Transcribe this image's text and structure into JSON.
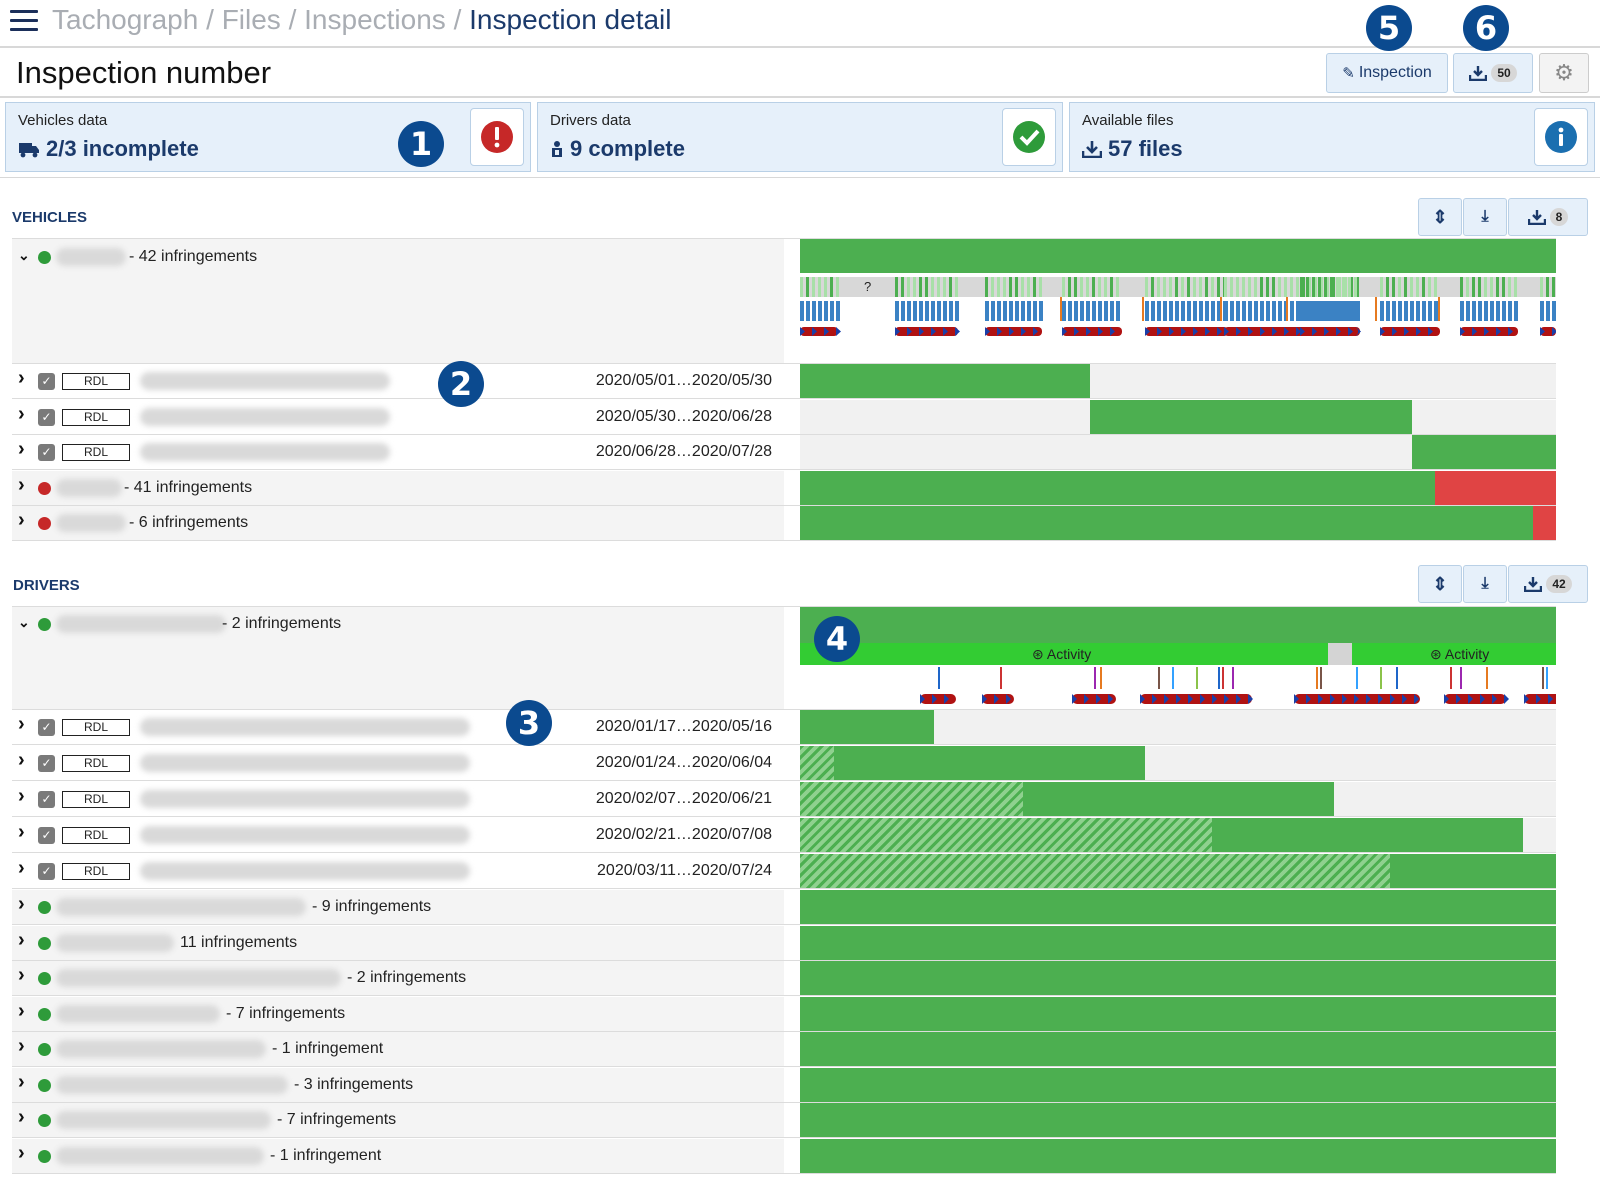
{
  "breadcrumb": {
    "items": [
      "Tachograph",
      "Files",
      "Inspections"
    ],
    "separator": "/",
    "current": "Inspection detail"
  },
  "page_title": "Inspection number",
  "toolbar": {
    "inspection_label": "Inspection",
    "download_count": "50"
  },
  "callouts": [
    "1",
    "2",
    "3",
    "4",
    "5",
    "6"
  ],
  "cards": {
    "vehicles": {
      "label": "Vehicles data",
      "value": "2/3 incomplete",
      "icon": "truck-icon",
      "status_icon": "error-icon"
    },
    "drivers": {
      "label": "Drivers data",
      "value": "9 complete",
      "icon": "driver-icon",
      "status_icon": "check-icon"
    },
    "files": {
      "label": "Available files",
      "value": "57 files",
      "icon": "download-icon",
      "status_icon": "info-icon"
    }
  },
  "vehicles": {
    "title": "VEHICLES",
    "download_count": "8",
    "rows": [
      {
        "infringements": "- 42 infringements",
        "status": "ok",
        "expanded": true,
        "timeline_mark": "?"
      },
      {
        "infringements": "- 41 infringements",
        "status": "error",
        "red_share": 0.16
      },
      {
        "infringements": "- 6 infringements",
        "status": "error",
        "red_share": 0.03
      }
    ],
    "files": [
      {
        "tag": "RDL",
        "dates": "2020/05/01…2020/05/30",
        "start": 0.0,
        "end": 0.383
      },
      {
        "tag": "RDL",
        "dates": "2020/05/30…2020/06/28",
        "start": 0.383,
        "end": 0.81
      },
      {
        "tag": "RDL",
        "dates": "2020/06/28…2020/07/28",
        "start": 0.81,
        "end": 1.0
      }
    ]
  },
  "drivers": {
    "title": "DRIVERS",
    "download_count": "42",
    "expanded_row": {
      "infringements": "- 2 infringements",
      "status": "ok",
      "activity_label": "Activity"
    },
    "files": [
      {
        "tag": "RDL",
        "dates": "2020/01/17…2020/05/16",
        "hatch": 0.0,
        "end": 0.177
      },
      {
        "tag": "RDL",
        "dates": "2020/01/24…2020/06/04",
        "hatch": 0.045,
        "end": 0.457
      },
      {
        "tag": "RDL",
        "dates": "2020/02/07…2020/06/21",
        "hatch": 0.295,
        "end": 0.707
      },
      {
        "tag": "RDL",
        "dates": "2020/02/21…2020/07/08",
        "hatch": 0.545,
        "end": 0.957
      },
      {
        "tag": "RDL",
        "dates": "2020/03/11…2020/07/24",
        "hatch": 0.78,
        "end": 1.0
      }
    ],
    "rows": [
      {
        "infringements": "- 9 infringements",
        "status": "ok"
      },
      {
        "infringements": "11 infringements",
        "status": "ok"
      },
      {
        "infringements": "- 2 infringements",
        "status": "ok"
      },
      {
        "infringements": "- 7 infringements",
        "status": "ok"
      },
      {
        "infringements": "- 1 infringement",
        "status": "ok"
      },
      {
        "infringements": "- 3 infringements",
        "status": "ok"
      },
      {
        "infringements": "- 7 infringements",
        "status": "ok"
      },
      {
        "infringements": "- 1 infringement",
        "status": "ok"
      }
    ]
  },
  "colors": {
    "accent": "#1b3a6b",
    "bar_green": "#4caf50",
    "bar_red": "#e04444",
    "activity_green": "#33cc33",
    "callout": "#0b4a8f"
  }
}
